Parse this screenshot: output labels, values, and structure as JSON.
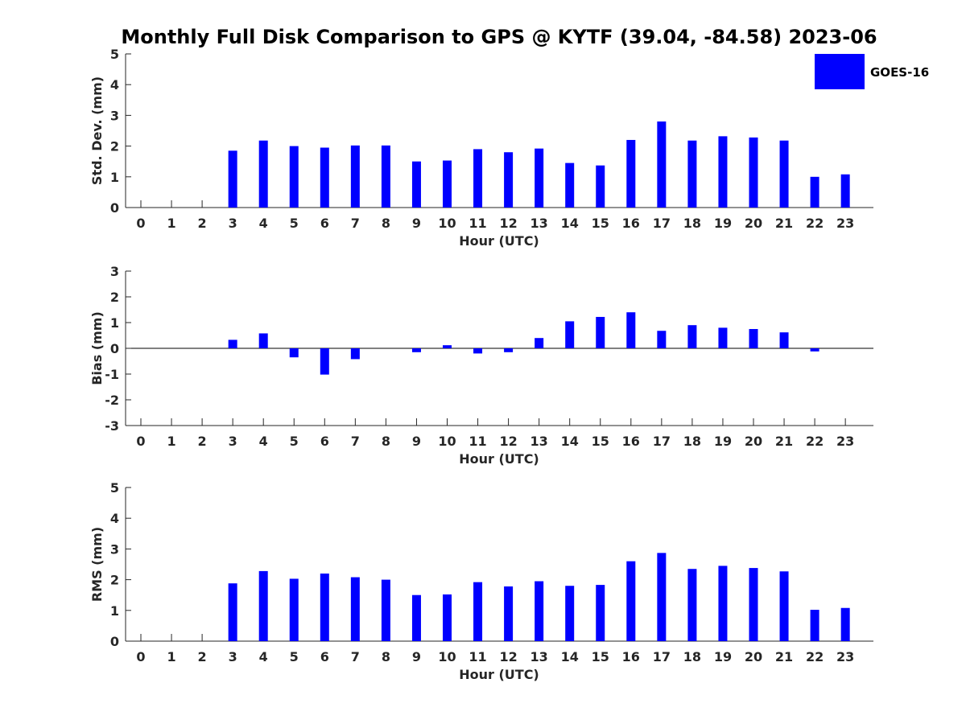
{
  "figure": {
    "title": "Monthly Full Disk Comparison to GPS @ KYTF (39.04, -84.58) 2023-06",
    "legend": {
      "label": "GOES-16",
      "color": "#0000ff",
      "position": "top-right"
    },
    "bar_color": "#0000ff"
  },
  "chart_data": [
    {
      "type": "bar",
      "panel": "std",
      "series_name": "GOES-16",
      "categories": [
        "0",
        "1",
        "2",
        "3",
        "4",
        "5",
        "6",
        "7",
        "8",
        "9",
        "10",
        "11",
        "12",
        "13",
        "14",
        "15",
        "16",
        "17",
        "18",
        "19",
        "20",
        "21",
        "22",
        "23"
      ],
      "values": [
        null,
        null,
        null,
        1.85,
        2.18,
        2.0,
        1.95,
        2.02,
        2.02,
        1.5,
        1.53,
        1.9,
        1.8,
        1.92,
        1.45,
        1.37,
        2.2,
        2.8,
        2.18,
        2.32,
        2.28,
        2.18,
        1.0,
        1.08
      ],
      "xlabel": "Hour (UTC)",
      "ylabel": "Std. Dev. (mm)",
      "ylim": [
        0,
        5
      ],
      "yticks": [
        0,
        1,
        2,
        3,
        4,
        5
      ],
      "grid": false
    },
    {
      "type": "bar",
      "panel": "bias",
      "series_name": "GOES-16",
      "categories": [
        "0",
        "1",
        "2",
        "3",
        "4",
        "5",
        "6",
        "7",
        "8",
        "9",
        "10",
        "11",
        "12",
        "13",
        "14",
        "15",
        "16",
        "17",
        "18",
        "19",
        "20",
        "21",
        "22",
        "23"
      ],
      "values": [
        null,
        null,
        null,
        0.33,
        0.58,
        -0.35,
        -1.02,
        -0.42,
        0.0,
        -0.15,
        0.12,
        -0.2,
        -0.15,
        0.4,
        1.05,
        1.22,
        1.4,
        0.68,
        0.9,
        0.8,
        0.75,
        0.62,
        -0.12,
        0.0
      ],
      "xlabel": "Hour (UTC)",
      "ylabel": "Bias (mm)",
      "ylim": [
        -3,
        3
      ],
      "yticks": [
        -3,
        -2,
        -1,
        0,
        1,
        2,
        3
      ],
      "grid": false
    },
    {
      "type": "bar",
      "panel": "rms",
      "series_name": "GOES-16",
      "categories": [
        "0",
        "1",
        "2",
        "3",
        "4",
        "5",
        "6",
        "7",
        "8",
        "9",
        "10",
        "11",
        "12",
        "13",
        "14",
        "15",
        "16",
        "17",
        "18",
        "19",
        "20",
        "21",
        "22",
        "23"
      ],
      "values": [
        null,
        null,
        null,
        1.88,
        2.28,
        2.03,
        2.2,
        2.08,
        2.0,
        1.5,
        1.52,
        1.92,
        1.78,
        1.95,
        1.8,
        1.83,
        2.6,
        2.87,
        2.35,
        2.45,
        2.38,
        2.27,
        1.02,
        1.08
      ],
      "xlabel": "Hour (UTC)",
      "ylabel": "RMS (mm)",
      "ylim": [
        0,
        5
      ],
      "yticks": [
        0,
        1,
        2,
        3,
        4,
        5
      ],
      "grid": false
    }
  ]
}
